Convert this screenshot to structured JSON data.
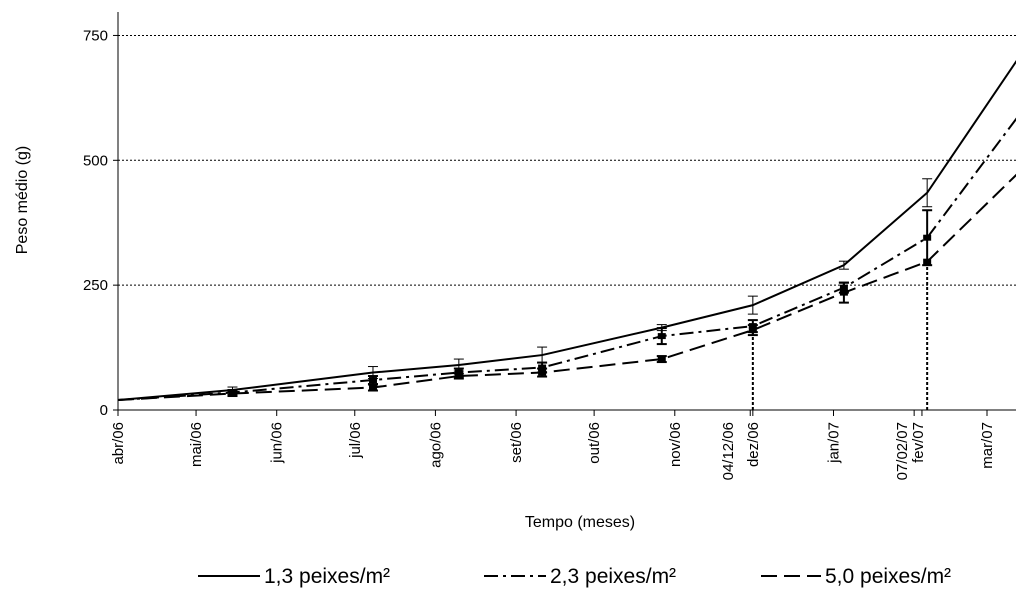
{
  "chart_data": {
    "type": "line",
    "xlabel": "Tempo (meses)",
    "ylabel": "Peso médio (g)",
    "ylim": [
      0,
      800
    ],
    "y_ticks": [
      0,
      250,
      500,
      750
    ],
    "y_gridlines": [
      250,
      500,
      750
    ],
    "x_tick_labels": [
      "abr/06",
      "mai/06",
      "jun/06",
      "jul/06",
      "ago/06",
      "set/06",
      "out/06",
      "nov/06",
      "04/12/06",
      "dez/06",
      "jan/07",
      "07/02/07",
      "fev/07",
      "mar/07"
    ],
    "vertical_markers": [
      "04/12/06",
      "07/02/07"
    ],
    "legend_position": "bottom",
    "series": [
      {
        "name": "1,3 peixes/m²",
        "style": "solid",
        "points": [
          {
            "x": "2006-04-01",
            "y": 20
          },
          {
            "x": "2006-05-15",
            "y": 40,
            "err": 6
          },
          {
            "x": "2006-07-08",
            "y": 75,
            "err": 12
          },
          {
            "x": "2006-08-10",
            "y": 90,
            "err": 12
          },
          {
            "x": "2006-09-11",
            "y": 110,
            "err": 16
          },
          {
            "x": "2006-10-27",
            "y": 165,
            "err": 6
          },
          {
            "x": "2006-12-01",
            "y": 210,
            "err": 18
          },
          {
            "x": "2007-01-05",
            "y": 290,
            "err": 8
          },
          {
            "x": "2007-02-06",
            "y": 435,
            "err": 28
          },
          {
            "x": "2007-03-19",
            "y": 750,
            "err": 48
          }
        ]
      },
      {
        "name": "2,3 peixes/m²",
        "style": "dash-dot",
        "points": [
          {
            "x": "2006-04-01",
            "y": 20
          },
          {
            "x": "2006-05-15",
            "y": 35,
            "err": 5
          },
          {
            "x": "2006-07-08",
            "y": 60,
            "err": 8
          },
          {
            "x": "2006-08-10",
            "y": 75,
            "err": 8
          },
          {
            "x": "2006-09-11",
            "y": 85,
            "err": 10
          },
          {
            "x": "2006-10-27",
            "y": 148,
            "err": 16
          },
          {
            "x": "2006-12-01",
            "y": 168,
            "err": 12
          },
          {
            "x": "2007-01-05",
            "y": 245,
            "err": 10
          },
          {
            "x": "2007-02-06",
            "y": 345,
            "err": 55
          },
          {
            "x": "2007-03-19",
            "y": 630,
            "err": 25
          }
        ]
      },
      {
        "name": "5,0 peixes/m²",
        "style": "dashed",
        "points": [
          {
            "x": "2006-04-01",
            "y": 20
          },
          {
            "x": "2006-05-15",
            "y": 33,
            "err": 5
          },
          {
            "x": "2006-07-08",
            "y": 45,
            "err": 6
          },
          {
            "x": "2006-08-10",
            "y": 68,
            "err": 5
          },
          {
            "x": "2006-09-11",
            "y": 75,
            "err": 8
          },
          {
            "x": "2006-10-27",
            "y": 102,
            "err": 6
          },
          {
            "x": "2006-12-01",
            "y": 160,
            "err": 10
          },
          {
            "x": "2007-01-05",
            "y": 235,
            "err": 20
          },
          {
            "x": "2007-02-06",
            "y": 297,
            "err": 0
          },
          {
            "x": "2007-03-19",
            "y": 505,
            "err": 10
          }
        ]
      }
    ]
  }
}
